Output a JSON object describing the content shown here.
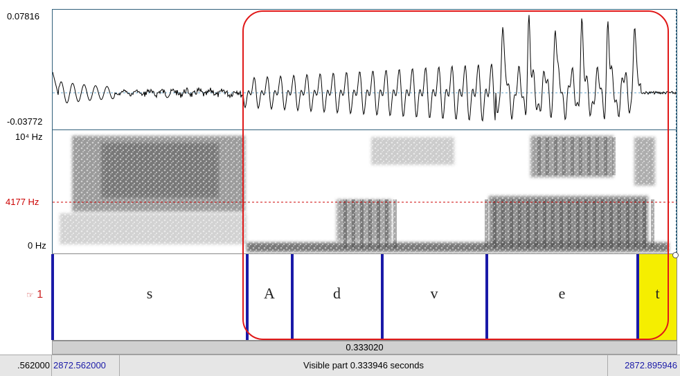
{
  "waveform": {
    "y_max": "0.07816",
    "y_min": "-0.03772"
  },
  "spectrogram": {
    "y_top": "10⁴ Hz",
    "y_cursor": "4177 Hz",
    "y_bottom": "0 Hz"
  },
  "tier": {
    "number": "1",
    "pointer_icon": "hand-pointer-icon",
    "intervals": [
      {
        "label": "s"
      },
      {
        "label": "A"
      },
      {
        "label": "d"
      },
      {
        "label": "v"
      },
      {
        "label": "e"
      },
      {
        "label": "t"
      }
    ]
  },
  "selection_duration": "0.333020",
  "bottom": {
    "left_total_start": ".562000",
    "visible_start": "2872.562000",
    "visible_part": "Visible part 0.333946 seconds",
    "visible_end": "2872.895946"
  },
  "colors": {
    "boundary": "#1a1aa8",
    "highlight": "#f5ee00",
    "annotation_box": "#e01818",
    "cursor_hz": "#cc0000",
    "time_text": "#1a1aa8"
  }
}
